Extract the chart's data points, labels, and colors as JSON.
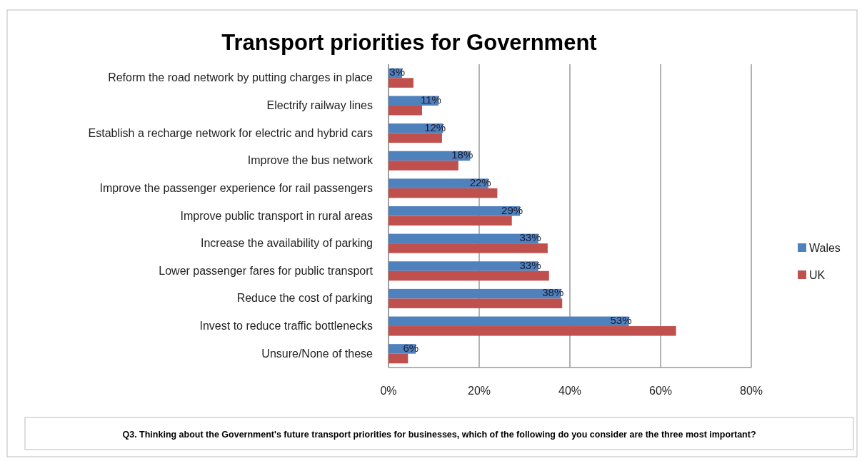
{
  "chart_data": {
    "type": "bar",
    "orientation": "horizontal",
    "title": "Transport priorities for Government",
    "categories": [
      "Reform the road network by putting charges in place",
      "Electrify railway lines",
      "Establish a recharge network for electric and hybrid cars",
      "Improve the bus network",
      "Improve the passenger experience for rail passengers",
      "Improve public transport in rural areas",
      "Increase the availability of parking",
      "Lower passenger fares for public transport",
      "Reduce the cost of parking",
      "Invest to reduce traffic bottlenecks",
      "Unsure/None of these"
    ],
    "series": [
      {
        "name": "Wales",
        "color": "#4f81bd",
        "values": [
          3,
          11,
          12,
          18,
          22,
          29,
          33,
          33,
          38,
          53,
          6
        ],
        "value_labels": [
          "3%",
          "11%",
          "12%",
          "18%",
          "22%",
          "29%",
          "33%",
          "33%",
          "38%",
          "53%",
          "6%"
        ]
      },
      {
        "name": "UK",
        "color": "#c0504d",
        "values": [
          5.5,
          7.4,
          11.8,
          15.4,
          24,
          27.2,
          35.1,
          35.4,
          38.3,
          63.4,
          4.3
        ]
      }
    ],
    "xlim": [
      0,
      80
    ],
    "xticks": [
      {
        "value": 0,
        "label": "0%"
      },
      {
        "value": 20,
        "label": "20%"
      },
      {
        "value": 40,
        "label": "40%"
      },
      {
        "value": 60,
        "label": "60%"
      },
      {
        "value": 80,
        "label": "80%"
      }
    ],
    "grid": "x",
    "legend": "right",
    "annotations": [
      "Q3. Thinking about the  Government's future transport priorities for businesses, which of the following do you consider are the three most important?"
    ]
  }
}
